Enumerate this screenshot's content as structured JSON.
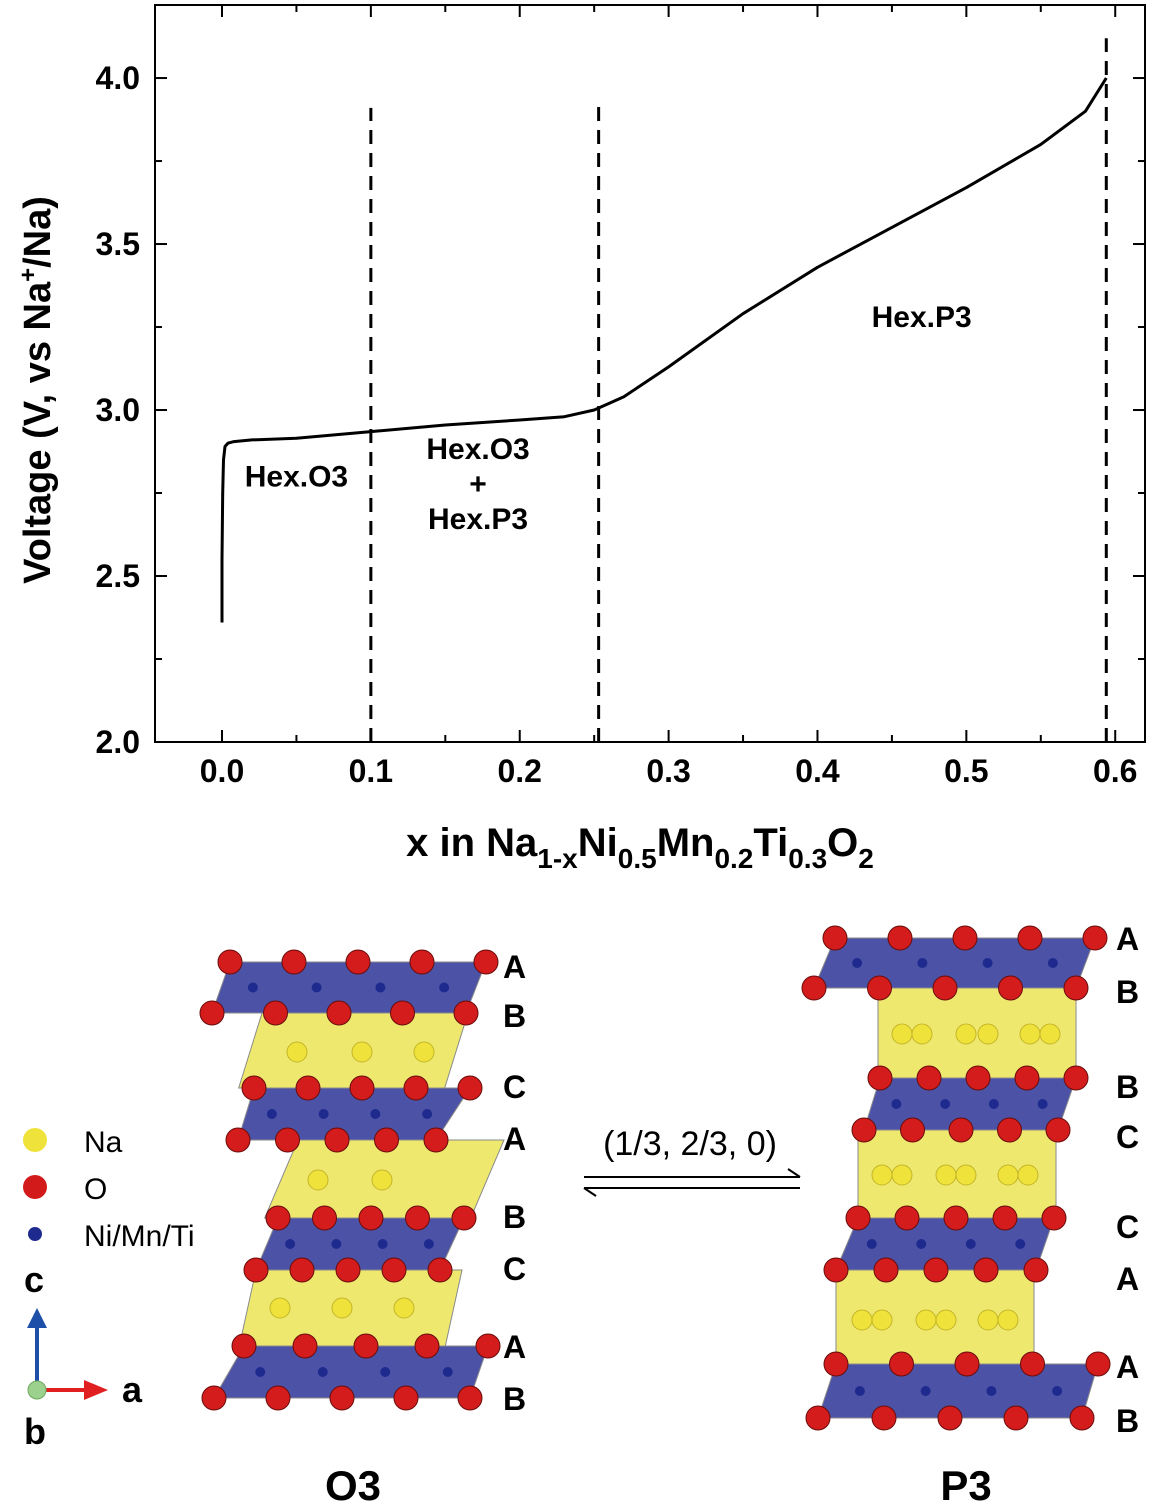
{
  "chart_data": {
    "type": "line",
    "title": "",
    "ylabel_main": "Voltage (V, vs Na",
    "ylabel_sup": "+",
    "ylabel_tail": "/Na)",
    "xlabel_parts": [
      {
        "t": "x in Na",
        "s": false
      },
      {
        "t": "1-x",
        "s": true
      },
      {
        "t": "Ni",
        "s": false
      },
      {
        "t": "0.5",
        "s": true
      },
      {
        "t": "Mn",
        "s": false
      },
      {
        "t": "0.2",
        "s": true
      },
      {
        "t": "Ti",
        "s": false
      },
      {
        "t": "0.3",
        "s": true
      },
      {
        "t": "O",
        "s": false
      },
      {
        "t": "2",
        "s": true
      }
    ],
    "xlim": [
      -0.045,
      0.62
    ],
    "ylim": [
      2.0,
      4.22
    ],
    "xticks": [
      {
        "v": 0.0,
        "label": "0.0"
      },
      {
        "v": 0.1,
        "label": "0.1"
      },
      {
        "v": 0.2,
        "label": "0.2"
      },
      {
        "v": 0.3,
        "label": "0.3"
      },
      {
        "v": 0.4,
        "label": "0.4"
      },
      {
        "v": 0.5,
        "label": "0.5"
      },
      {
        "v": 0.6,
        "label": "0.6"
      }
    ],
    "xminor": [
      0.05,
      0.15,
      0.25,
      0.35,
      0.45,
      0.55
    ],
    "yticks": [
      {
        "v": 2.0,
        "label": "2.0"
      },
      {
        "v": 2.5,
        "label": "2.5"
      },
      {
        "v": 3.0,
        "label": "3.0"
      },
      {
        "v": 3.5,
        "label": "3.5"
      },
      {
        "v": 4.0,
        "label": "4.0"
      }
    ],
    "yminor": [
      2.25,
      2.75,
      3.25,
      3.75
    ],
    "series": [
      {
        "x": [
          0.0,
          0.0,
          0.0005,
          0.001,
          0.002,
          0.004,
          0.008,
          0.02,
          0.05,
          0.1,
          0.15,
          0.2,
          0.23,
          0.25,
          0.27,
          0.3,
          0.35,
          0.4,
          0.45,
          0.5,
          0.55,
          0.58,
          0.594
        ],
        "y": [
          2.36,
          2.55,
          2.75,
          2.85,
          2.89,
          2.9,
          2.905,
          2.91,
          2.915,
          2.935,
          2.955,
          2.97,
          2.98,
          3.0,
          3.04,
          3.13,
          3.29,
          3.43,
          3.55,
          3.67,
          3.8,
          3.9,
          4.0
        ]
      }
    ],
    "dashed_lines": [
      {
        "x": 0.1,
        "y_top": 3.91
      },
      {
        "x": 0.253,
        "y_top": 3.92
      },
      {
        "x": 0.594,
        "y_top": 4.12
      }
    ],
    "annotations": [
      {
        "lines": [
          "Hex.O3"
        ],
        "x": 0.05,
        "y": 2.77
      },
      {
        "lines": [
          "Hex.O3",
          "+",
          "Hex.P3"
        ],
        "x": 0.172,
        "y": 2.75
      },
      {
        "lines": [
          "Hex.P3"
        ],
        "x": 0.47,
        "y": 3.25
      }
    ]
  },
  "diagram": {
    "o3_title": "O3",
    "p3_title": "P3",
    "transform_label": "(1/3, 2/3, 0)",
    "o3_stack": [
      "A",
      "B",
      "C",
      "A",
      "B",
      "C",
      "A",
      "B"
    ],
    "p3_stack": [
      "A",
      "B",
      "B",
      "C",
      "C",
      "A",
      "A",
      "B"
    ],
    "legend": [
      {
        "name": "Na",
        "color": "#efe23a"
      },
      {
        "name": "O",
        "color": "#d31a1a"
      },
      {
        "name": "Ni/Mn/Ti",
        "color": "#1e2a8e"
      }
    ],
    "axes": {
      "c": "c",
      "a": "a",
      "b": "b"
    },
    "colors": {
      "octahedra": "#2d3597",
      "sodium_layer": "#e8e23e",
      "oxygen": "#d41c1c",
      "tm": "#1f2a8f",
      "sodium": "#efe23a",
      "axis_c": "#1d4fa8",
      "axis_a": "#e02020"
    }
  }
}
